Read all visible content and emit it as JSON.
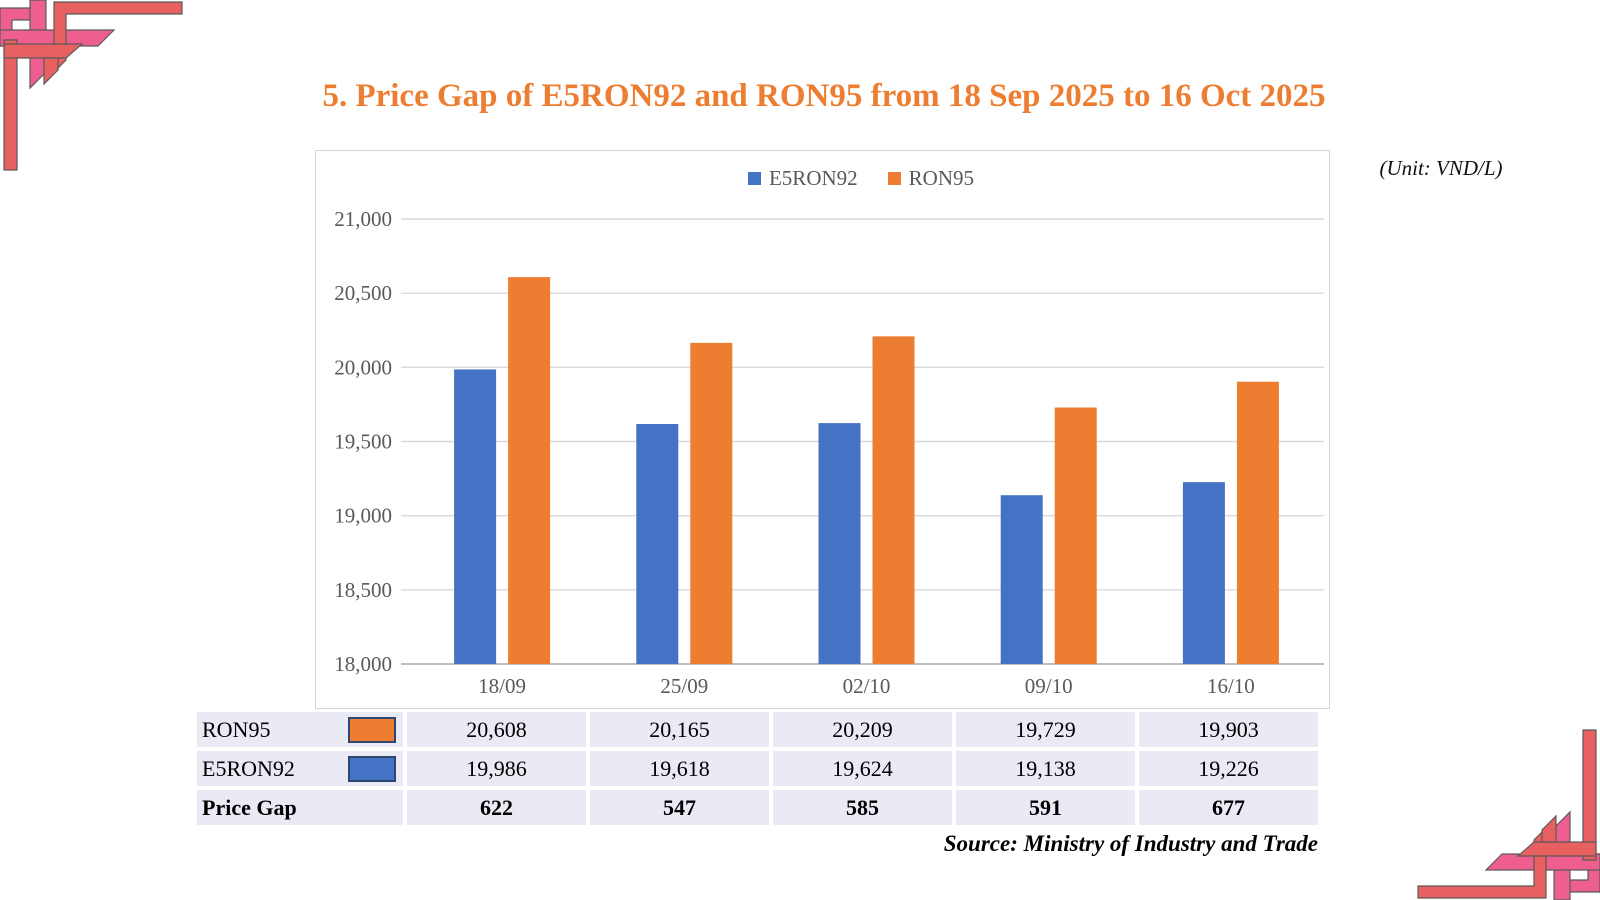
{
  "page": {
    "title": "5. Price Gap of E5RON92 and RON95 from 18 Sep 2025 to 16 Oct 2025",
    "unit_label": "(Unit: VND/L)",
    "source": "Source: Ministry of Industry and Trade"
  },
  "colors": {
    "title": "#ED7D31",
    "series_e5ron92": "#4472C4",
    "series_ron95": "#ED7D31",
    "axis_text": "#595959",
    "gridline": "#D9D9D9",
    "axis_line": "#BFBFBF",
    "table_cell_bg": "#E9EAF4",
    "swatch_border": "#2E4670",
    "ornament_pink": "#EE5F8F",
    "ornament_coral": "#E96060"
  },
  "chart_data": {
    "type": "bar",
    "title": "",
    "xlabel": "",
    "ylabel": "",
    "categories": [
      "18/09",
      "25/09",
      "02/10",
      "09/10",
      "16/10"
    ],
    "series": [
      {
        "name": "E5RON92",
        "color": "#4472C4",
        "values": [
          19986,
          19618,
          19624,
          19138,
          19226
        ]
      },
      {
        "name": "RON95",
        "color": "#ED7D31",
        "values": [
          20608,
          20165,
          20209,
          19729,
          19903
        ]
      }
    ],
    "ylim": [
      18000,
      21000
    ],
    "ytick_step": 500,
    "ytick_labels": [
      "18,000",
      "18,500",
      "19,000",
      "19,500",
      "20,000",
      "20,500",
      "21,000"
    ],
    "legend_position": "top-center",
    "grid": true
  },
  "table": {
    "rows": [
      {
        "label": "RON95",
        "swatch": "#ED7D31",
        "bold": false,
        "values": [
          "20,608",
          "20,165",
          "20,209",
          "19,729",
          "19,903"
        ]
      },
      {
        "label": "E5RON92",
        "swatch": "#4472C4",
        "bold": false,
        "values": [
          "19,986",
          "19,618",
          "19,624",
          "19,138",
          "19,226"
        ]
      },
      {
        "label": "Price Gap",
        "swatch": null,
        "bold": true,
        "values": [
          "622",
          "547",
          "585",
          "591",
          "677"
        ]
      }
    ]
  }
}
